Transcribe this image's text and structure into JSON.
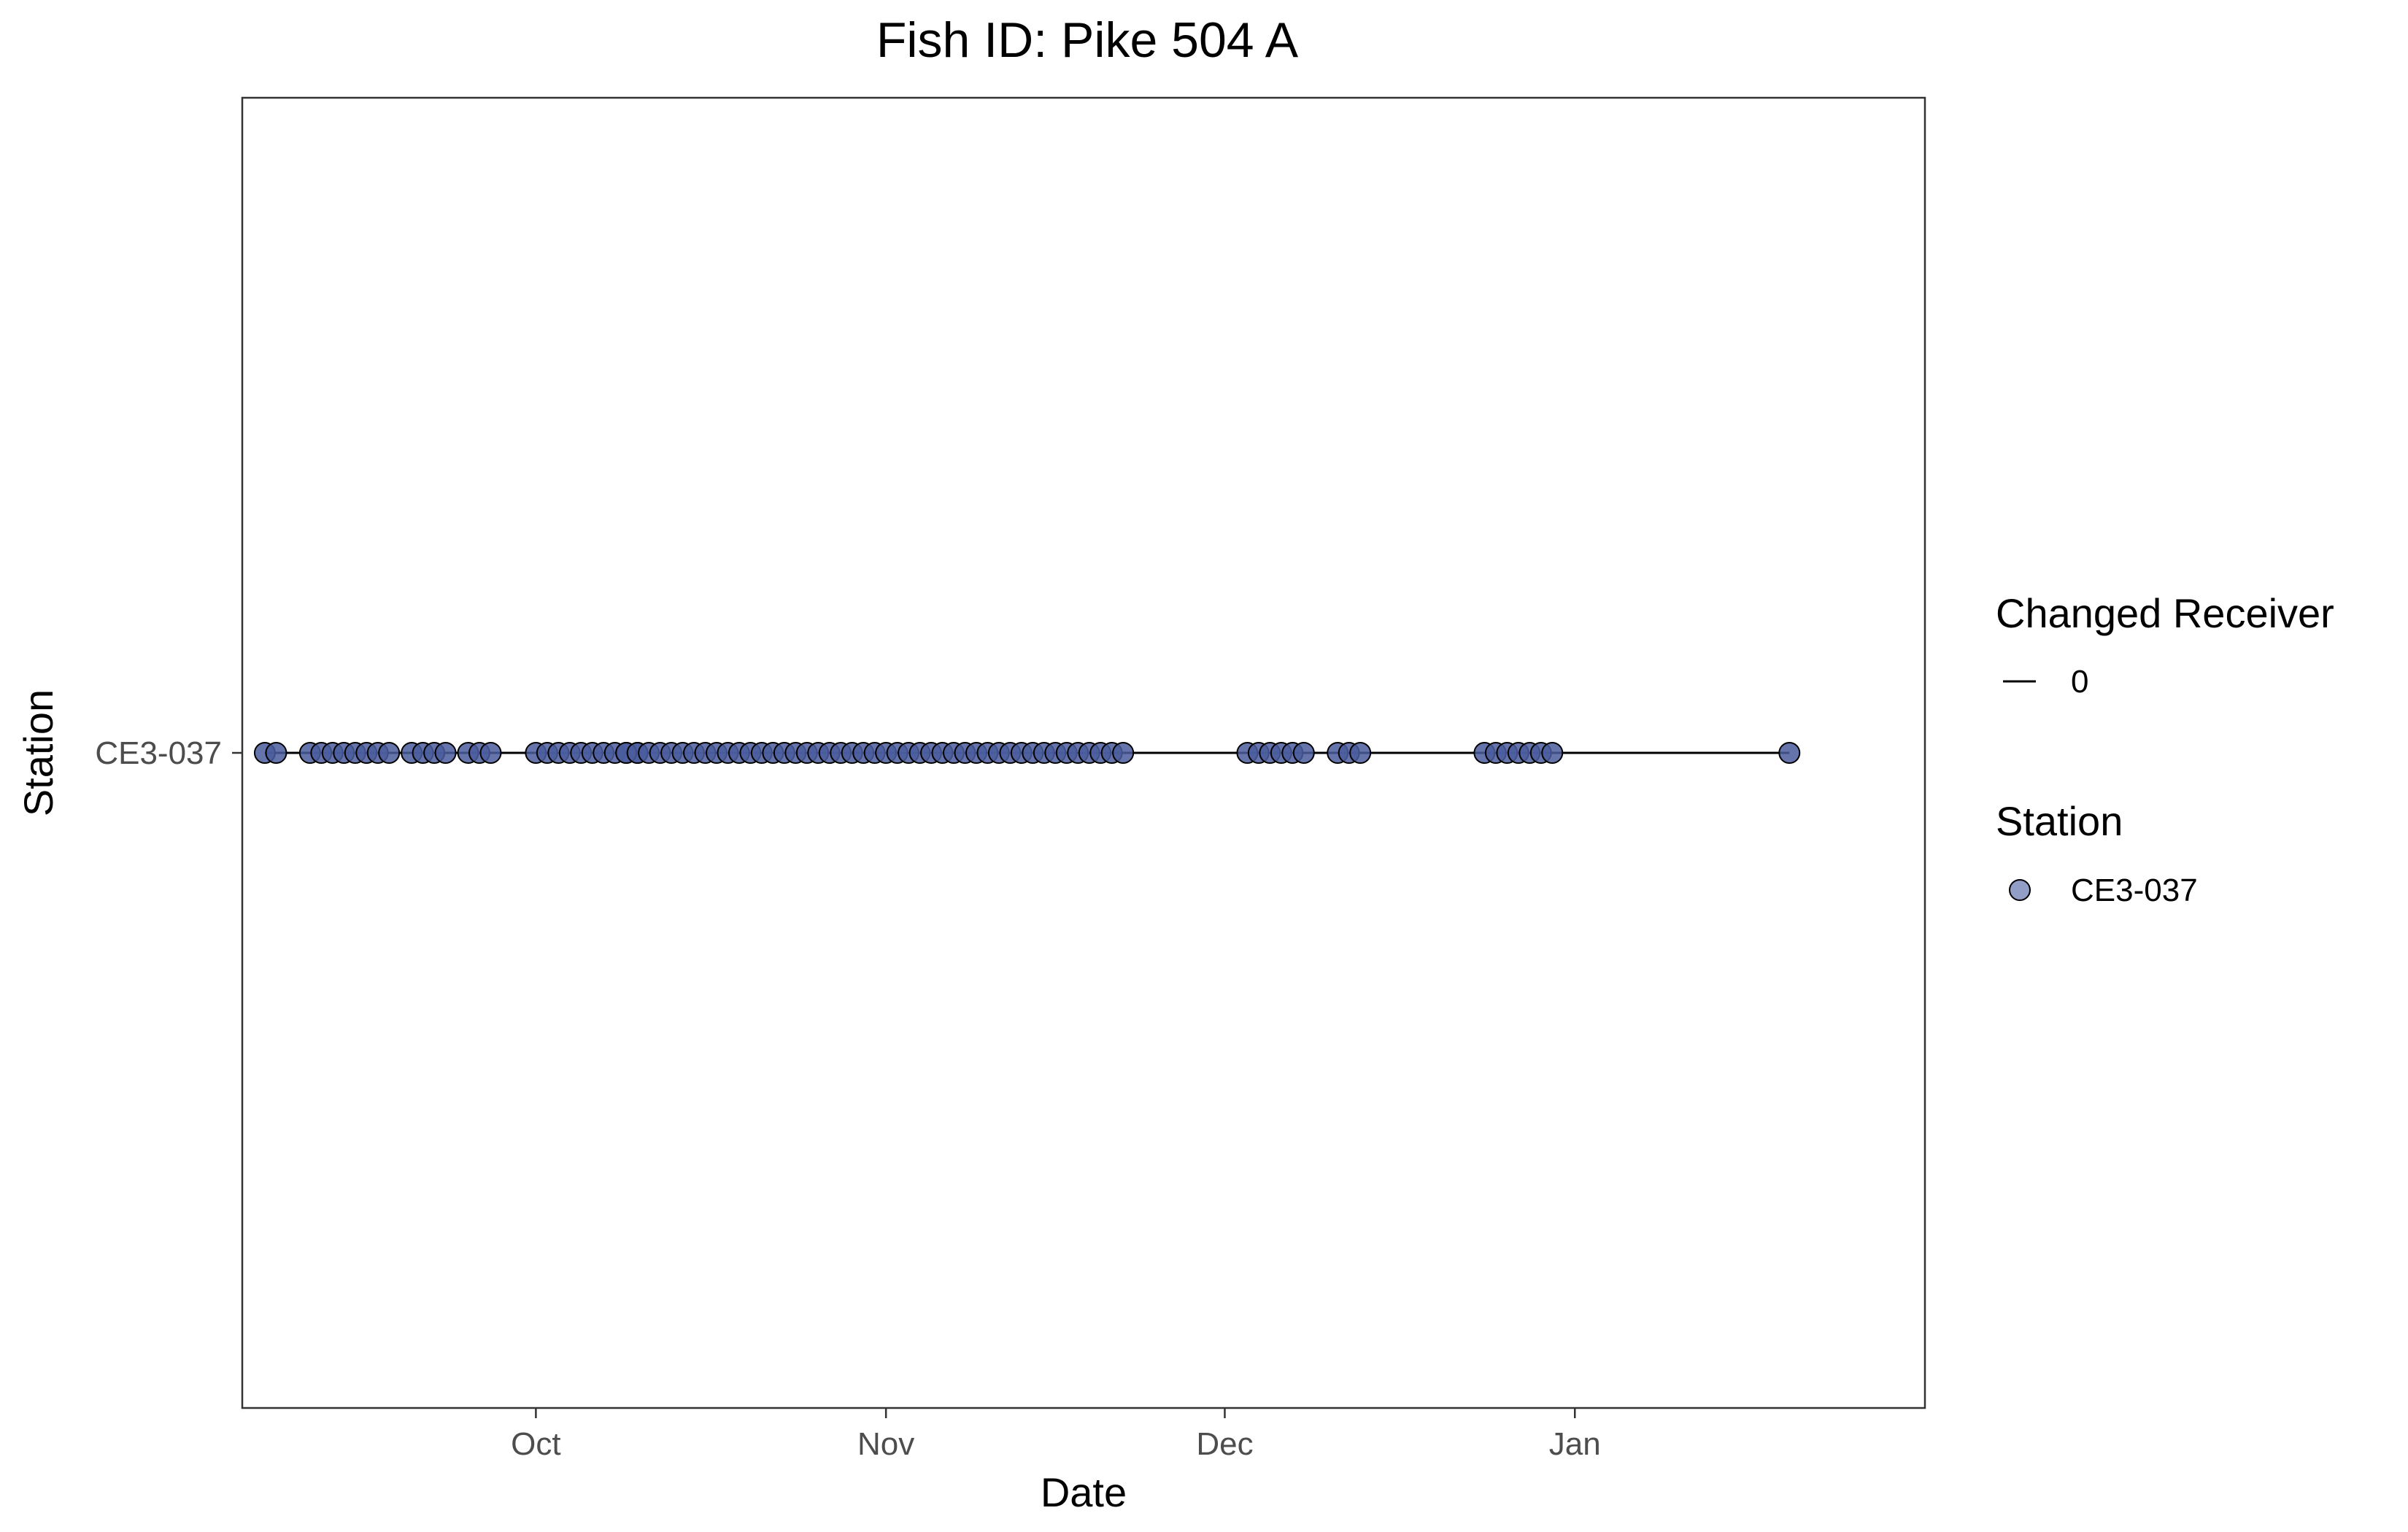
{
  "chart_data": {
    "type": "scatter",
    "title": "Fish ID: Pike 504 A",
    "xlabel": "Date",
    "ylabel": "Station",
    "x_tick_labels": [
      "Oct",
      "Nov",
      "Dec",
      "Jan"
    ],
    "x_ticks": [
      "2021-10-01",
      "2021-11-01",
      "2021-12-01",
      "2022-01-01"
    ],
    "xlim": [
      "2021-09-05",
      "2022-02-01"
    ],
    "categories": [
      "CE3-037"
    ],
    "grid": false,
    "legend_position": "right",
    "legends": [
      {
        "title": "Changed Receiver",
        "entries": [
          {
            "label": "0",
            "symbol": "line"
          }
        ]
      },
      {
        "title": "Station",
        "entries": [
          {
            "label": "CE3-037",
            "symbol": "point",
            "color": "#4a5d9e"
          }
        ]
      }
    ],
    "colors": {
      "point_fill": "#4a5d9e",
      "point_stroke": "#000000",
      "line": "#000000",
      "panel_border": "#333333"
    },
    "series": [
      {
        "station": "CE3-037",
        "changed_receiver": "0",
        "x": [
          "2021-09-07",
          "2021-09-08",
          "2021-09-11",
          "2021-09-12",
          "2021-09-13",
          "2021-09-14",
          "2021-09-15",
          "2021-09-16",
          "2021-09-17",
          "2021-09-18",
          "2021-09-20",
          "2021-09-21",
          "2021-09-22",
          "2021-09-23",
          "2021-09-25",
          "2021-09-26",
          "2021-09-27",
          "2021-10-01",
          "2021-10-02",
          "2021-10-03",
          "2021-10-04",
          "2021-10-05",
          "2021-10-06",
          "2021-10-07",
          "2021-10-08",
          "2021-10-09",
          "2021-10-10",
          "2021-10-09",
          "2021-10-10",
          "2021-10-11",
          "2021-10-12",
          "2021-10-13",
          "2021-10-14",
          "2021-10-15",
          "2021-10-16",
          "2021-10-17",
          "2021-10-18",
          "2021-10-19",
          "2021-10-20",
          "2021-10-21",
          "2021-10-22",
          "2021-10-23",
          "2021-10-24",
          "2021-10-25",
          "2021-10-26",
          "2021-10-27",
          "2021-10-28",
          "2021-10-29",
          "2021-10-30",
          "2021-10-31",
          "2021-11-01",
          "2021-11-02",
          "2021-11-03",
          "2021-11-04",
          "2021-11-05",
          "2021-11-06",
          "2021-11-07",
          "2021-11-08",
          "2021-11-09",
          "2021-11-10",
          "2021-11-11",
          "2021-11-12",
          "2021-11-13",
          "2021-11-14",
          "2021-11-15",
          "2021-11-16",
          "2021-11-17",
          "2021-11-18",
          "2021-11-19",
          "2021-11-20",
          "2021-11-21",
          "2021-11-22",
          "2021-12-03",
          "2021-12-04",
          "2021-12-05",
          "2021-12-06",
          "2021-12-07",
          "2021-12-08",
          "2021-12-11",
          "2021-12-12",
          "2021-12-13",
          "2021-12-24",
          "2021-12-25",
          "2021-12-26",
          "2021-12-27",
          "2021-12-28",
          "2021-12-29",
          "2021-12-30",
          "2022-01-20"
        ],
        "y": "CE3-037"
      }
    ]
  }
}
